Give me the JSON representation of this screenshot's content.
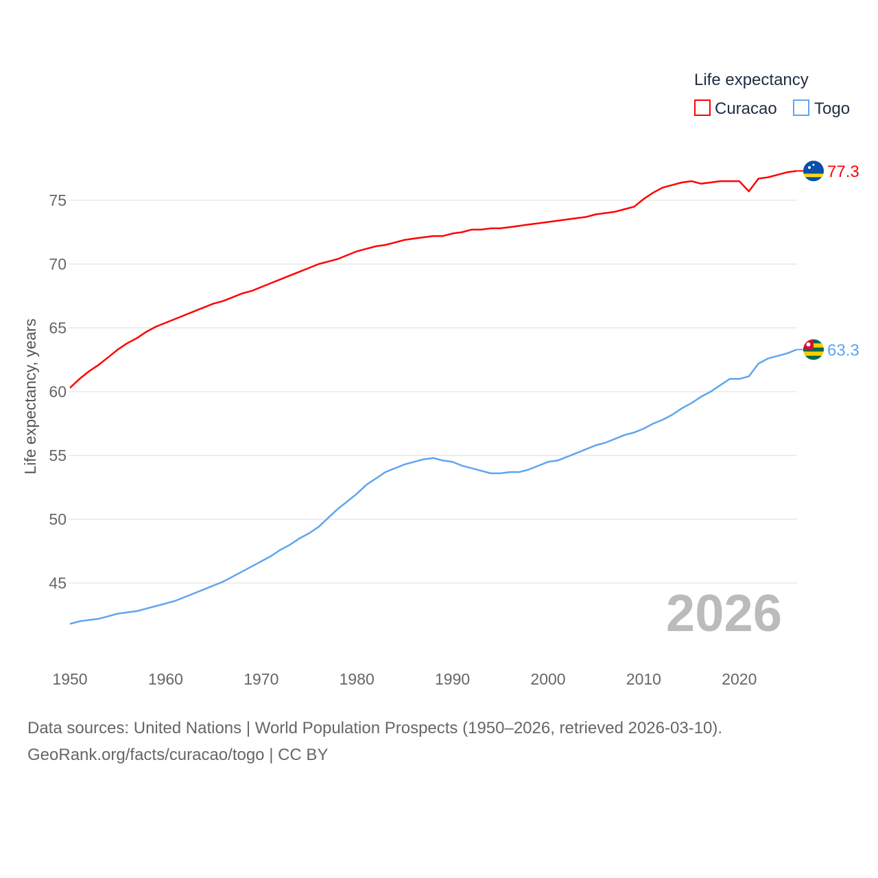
{
  "chart_data": {
    "type": "line",
    "ylabel": "Life expectancy, years",
    "xlabel": "",
    "legend_title": "Life expectancy",
    "legend_position": "top-right",
    "xlim": [
      1950,
      2026
    ],
    "ylim": [
      40,
      79
    ],
    "x_ticks": [
      "1950",
      "1960",
      "1970",
      "1980",
      "1990",
      "2000",
      "2010",
      "2020"
    ],
    "y_ticks": [
      "45",
      "50",
      "55",
      "60",
      "65",
      "70",
      "75"
    ],
    "grid": true,
    "year_watermark": "2026",
    "x_start": 1950,
    "series": [
      {
        "name": "Curacao",
        "color": "#ff0000",
        "end_label": "77.3",
        "flag": "curacao",
        "values": [
          60.3,
          61.0,
          61.6,
          62.1,
          62.7,
          63.3,
          63.8,
          64.2,
          64.7,
          65.1,
          65.4,
          65.7,
          66.0,
          66.3,
          66.6,
          66.9,
          67.1,
          67.4,
          67.7,
          67.9,
          68.2,
          68.5,
          68.8,
          69.1,
          69.4,
          69.7,
          70.0,
          70.2,
          70.4,
          70.7,
          71.0,
          71.2,
          71.4,
          71.5,
          71.7,
          71.9,
          72.0,
          72.1,
          72.2,
          72.2,
          72.4,
          72.5,
          72.7,
          72.7,
          72.8,
          72.8,
          72.9,
          73.0,
          73.1,
          73.2,
          73.3,
          73.4,
          73.5,
          73.6,
          73.7,
          73.9,
          74.0,
          74.1,
          74.3,
          74.5,
          75.1,
          75.6,
          76.0,
          76.2,
          76.4,
          76.5,
          76.3,
          76.4,
          76.5,
          76.5,
          76.5,
          75.7,
          76.7,
          76.8,
          77.0,
          77.2,
          77.3
        ]
      },
      {
        "name": "Togo",
        "color": "#5ea5ee",
        "end_label": "63.3",
        "flag": "togo",
        "values": [
          41.8,
          42.0,
          42.1,
          42.2,
          42.4,
          42.6,
          42.7,
          42.8,
          43.0,
          43.2,
          43.4,
          43.6,
          43.9,
          44.2,
          44.5,
          44.8,
          45.1,
          45.5,
          45.9,
          46.3,
          46.7,
          47.1,
          47.6,
          48.0,
          48.5,
          48.9,
          49.4,
          50.1,
          50.8,
          51.4,
          52.0,
          52.7,
          53.2,
          53.7,
          54.0,
          54.3,
          54.5,
          54.7,
          54.8,
          54.6,
          54.5,
          54.2,
          54.0,
          53.8,
          53.6,
          53.6,
          53.7,
          53.7,
          53.9,
          54.2,
          54.5,
          54.6,
          54.9,
          55.2,
          55.5,
          55.8,
          56.0,
          56.3,
          56.6,
          56.8,
          57.1,
          57.5,
          57.8,
          58.2,
          58.7,
          59.1,
          59.6,
          60.0,
          60.5,
          61.0,
          61.0,
          61.2,
          62.2,
          62.6,
          62.8,
          63.0,
          63.3
        ]
      }
    ]
  },
  "footer": {
    "line1": "Data sources: United Nations | World Population Prospects (1950–2026, retrieved 2026-03-10).",
    "line2": "GeoRank.org/facts/curacao/togo | CC BY"
  }
}
